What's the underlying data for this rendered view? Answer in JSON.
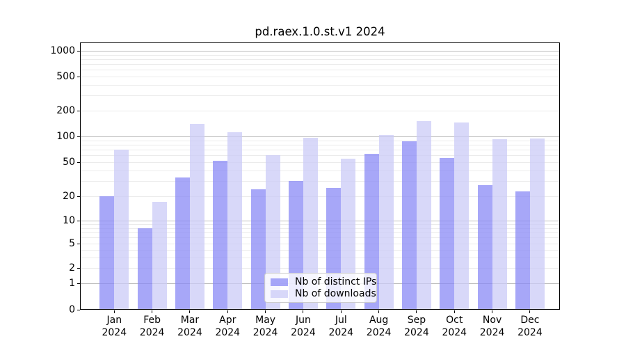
{
  "chart_data": {
    "type": "bar",
    "title": "pd.raex.1.0.st.v1 2024",
    "categories": [
      "Jan 2024",
      "Feb 2024",
      "Mar 2024",
      "Apr 2024",
      "May 2024",
      "Jun 2024",
      "Jul 2024",
      "Aug 2024",
      "Sep 2024",
      "Oct 2024",
      "Nov 2024",
      "Dec 2024"
    ],
    "series": [
      {
        "name": "Nb of distinct IPs",
        "color": "#8989f5",
        "values": [
          20,
          8,
          33,
          52,
          24,
          30,
          25,
          63,
          87,
          56,
          27,
          23
        ]
      },
      {
        "name": "Nb of downloads",
        "color": "#cbcbf7",
        "values": [
          70,
          17,
          140,
          112,
          60,
          96,
          55,
          104,
          150,
          146,
          92,
          94
        ]
      }
    ],
    "xlabel": "",
    "ylabel": "",
    "yscale": "symlog",
    "ylim": [
      0,
      1250
    ],
    "y_tick_values": [
      1000,
      500,
      200,
      100,
      50,
      20,
      10,
      5,
      2,
      1,
      0
    ],
    "y_tick_labels": [
      "1000",
      "500",
      "200",
      "100",
      "50",
      "20",
      "10",
      "5",
      "2",
      "1",
      "0"
    ],
    "major_grid_values": [
      1,
      10,
      100,
      1000
    ],
    "minor_grid_values": [
      2,
      3,
      4,
      5,
      6,
      7,
      8,
      9,
      20,
      30,
      40,
      50,
      60,
      70,
      80,
      90,
      200,
      300,
      400,
      500,
      600,
      700,
      800,
      900
    ],
    "grid": true,
    "legend": {
      "position": "lower center",
      "entries": [
        "Nb of distinct IPs",
        "Nb of downloads"
      ]
    },
    "colors": {
      "distinct_ips": "#8989f5",
      "downloads": "#cbcbf7",
      "major_grid": "#bdbdbd",
      "minor_grid": "#ebebeb",
      "spine": "#000000",
      "background": "#ffffff"
    }
  }
}
